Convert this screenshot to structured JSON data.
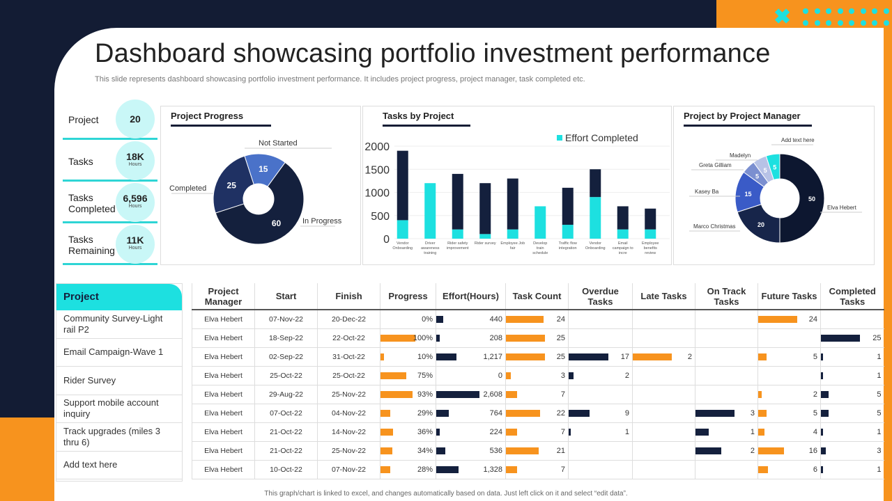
{
  "header": {
    "title": "Dashboard showcasing portfolio investment performance",
    "subtitle": "This slide represents dashboard showcasing portfolio investment performance. It includes project progress, project manager, task completed etc."
  },
  "kpis": [
    {
      "label": "Project",
      "value": "20",
      "unit": ""
    },
    {
      "label": "Tasks",
      "value": "18K",
      "unit": "Hours"
    },
    {
      "label": "Tasks Completed",
      "value": "6,596",
      "unit": "Hours"
    },
    {
      "label": "Tasks Remaining",
      "value": "11K",
      "unit": "Hours"
    }
  ],
  "colors": {
    "navy": "#14203d",
    "orange": "#f7931e",
    "cyan": "#1de0e0"
  },
  "chart_data": [
    {
      "type": "pie",
      "title": "Project Progress",
      "donut": true,
      "slices": [
        {
          "label": "Not Started",
          "value": 15,
          "color": "#4a72c9"
        },
        {
          "label": "In Progress",
          "value": 60,
          "color": "#14203d"
        },
        {
          "label": "Completed",
          "value": 25,
          "color": "#1f3163"
        }
      ]
    },
    {
      "type": "bar",
      "stacked": true,
      "title": "Tasks by Project",
      "categories": [
        "Vendor Onboarding",
        "Driver awareness training",
        "Rider safety improvement",
        "Rider survey",
        "Employee Job fair",
        "Develop train schedule",
        "Traffic flow integration",
        "Vendor Onboarding",
        "Email campaign to incre",
        "Employee benefits review"
      ],
      "series": [
        {
          "name": "Effort Completed",
          "color": "#1de0e0",
          "values": [
            400,
            1200,
            200,
            100,
            200,
            700,
            300,
            900,
            200,
            200
          ]
        },
        {
          "color": "#14203d",
          "values": [
            1500,
            0,
            1200,
            1100,
            1100,
            0,
            800,
            600,
            500,
            450
          ]
        }
      ],
      "yticks": [
        0,
        500,
        1000,
        1500,
        2000
      ],
      "ylim": [
        0,
        2000
      ],
      "legend": "top-right",
      "grid": true
    },
    {
      "type": "pie",
      "title": "Project by Project Manager",
      "donut": true,
      "slices": [
        {
          "label": "Elva Hebert",
          "value": 50,
          "color": "#0d1730"
        },
        {
          "label": "Marco Christmas",
          "value": 20,
          "color": "#17254a"
        },
        {
          "label": "Kasey Ba",
          "value": 15,
          "color": "#3a5bc7"
        },
        {
          "label": "Greta Gilliam",
          "value": 5,
          "color": "#7b8fd0"
        },
        {
          "label": "Madelyn",
          "value": 5,
          "color": "#b7c2e6"
        },
        {
          "label": "Add text here",
          "value": 5,
          "color": "#1de0e0"
        }
      ]
    }
  ],
  "projects": {
    "heading": "Project",
    "items": [
      "Community Survey-Light rail P2",
      "Email Campaign-Wave  1",
      "Rider Survey",
      "Support mobile account inquiry",
      "Track upgrades (miles 3 thru 6)",
      "Add text here"
    ]
  },
  "table": {
    "columns": [
      "Project Manager",
      "Start",
      "Finish",
      "Progress",
      "Effort(Hours)",
      "Task Count",
      "Overdue Tasks",
      "Late Tasks",
      "On Track Tasks",
      "Future Tasks",
      "Completed Tasks"
    ],
    "rows": [
      [
        "Elva Hebert",
        "07-Nov-22",
        "20-Dec-22",
        "0%",
        "440",
        "24",
        "",
        "",
        "",
        "24",
        ""
      ],
      [
        "Elva Hebert",
        "18-Sep-22",
        "22-Oct-22",
        "100%",
        "208",
        "25",
        "",
        "",
        "",
        "",
        "25"
      ],
      [
        "Elva Hebert",
        "02-Sep-22",
        "31-Oct-22",
        "10%",
        "1,217",
        "25",
        "17",
        "2",
        "",
        "5",
        "1"
      ],
      [
        "Elva Hebert",
        "25-Oct-22",
        "25-Oct-22",
        "75%",
        "0",
        "3",
        "2",
        "",
        "",
        "",
        "1"
      ],
      [
        "Elva Hebert",
        "29-Aug-22",
        "25-Nov-22",
        "93%",
        "2,608",
        "7",
        "",
        "",
        "",
        "2",
        "5"
      ],
      [
        "Elva Hebert",
        "07-Oct-22",
        "04-Nov-22",
        "29%",
        "764",
        "22",
        "9",
        "",
        "3",
        "5",
        "5"
      ],
      [
        "Elva Hebert",
        "21-Oct-22",
        "14-Nov-22",
        "36%",
        "224",
        "7",
        "1",
        "",
        "1",
        "4",
        "1"
      ],
      [
        "Elva Hebert",
        "21-Oct-22",
        "25-Nov-22",
        "34%",
        "536",
        "21",
        "",
        "",
        "2",
        "16",
        "3"
      ],
      [
        "Elva Hebert",
        "10-Oct-22",
        "07-Nov-22",
        "28%",
        "1,328",
        "7",
        "",
        "",
        "",
        "6",
        "1"
      ]
    ]
  },
  "footer": "This graph/chart is linked to excel, and changes automatically based on data. Just left click on it and select “edit data”."
}
